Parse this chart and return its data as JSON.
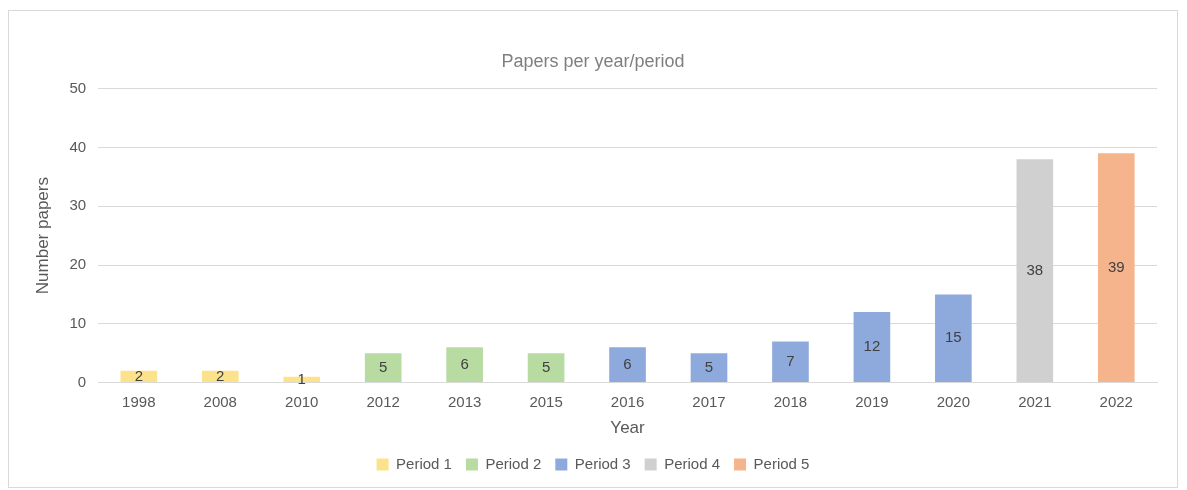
{
  "chart_data": {
    "type": "bar",
    "title": "Papers per year/period",
    "xlabel": "Year",
    "ylabel": "Number papers",
    "categories": [
      "1998",
      "2008",
      "2010",
      "2012",
      "2013",
      "2015",
      "2016",
      "2017",
      "2018",
      "2019",
      "2020",
      "2021",
      "2022"
    ],
    "series": [
      {
        "name": "Period 1",
        "color": "#fde28c",
        "values": [
          2,
          2,
          1,
          null,
          null,
          null,
          null,
          null,
          null,
          null,
          null,
          null,
          null
        ]
      },
      {
        "name": "Period 2",
        "color": "#b7dba0",
        "values": [
          null,
          null,
          null,
          5,
          6,
          5,
          null,
          null,
          null,
          null,
          null,
          null,
          null
        ]
      },
      {
        "name": "Period 3",
        "color": "#8eaadc",
        "values": [
          null,
          null,
          null,
          null,
          null,
          null,
          6,
          5,
          7,
          12,
          15,
          null,
          null
        ]
      },
      {
        "name": "Period 4",
        "color": "#d0d0d0",
        "values": [
          null,
          null,
          null,
          null,
          null,
          null,
          null,
          null,
          null,
          null,
          null,
          38,
          null
        ]
      },
      {
        "name": "Period 5",
        "color": "#f5b48c",
        "values": [
          null,
          null,
          null,
          null,
          null,
          null,
          null,
          null,
          null,
          null,
          null,
          null,
          39
        ]
      }
    ],
    "ylim": [
      0,
      50
    ],
    "yticks": [
      0,
      10,
      20,
      30,
      40,
      50
    ],
    "grid": "y",
    "legend": "bottom",
    "data_labels": true
  }
}
